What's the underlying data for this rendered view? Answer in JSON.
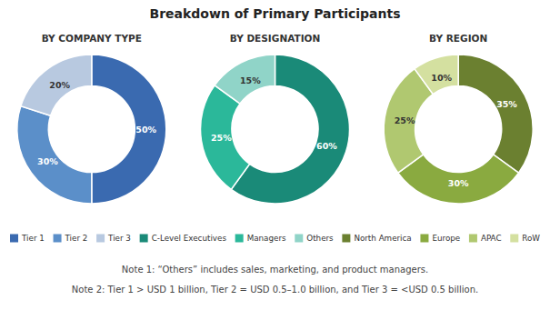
{
  "title": "Breakdown of Primary Participants",
  "annotations": [
    "Note 1: “Others” includes sales, marketing, and product managers.",
    "Note 2: Tier 1 > USD 1 billion, Tier 2 = USD 0.5–1.0 billion, and Tier 3 = <USD 0.5 billion."
  ],
  "chart_data": [
    {
      "type": "pie",
      "title": "BY COMPANY TYPE",
      "categories": [
        "Tier 1",
        "Tier 2",
        "Tier 3"
      ],
      "values": [
        50,
        30,
        20
      ],
      "value_labels": [
        "50%",
        "30%",
        "20%"
      ],
      "colors": [
        "#3a6ab0",
        "#5b8fc9",
        "#b8c9e0"
      ],
      "data_labels": true,
      "legend": "bottom"
    },
    {
      "type": "pie",
      "title": "BY DESIGNATION",
      "categories": [
        "C-Level Executives",
        "Managers",
        "Others"
      ],
      "values": [
        60,
        25,
        15
      ],
      "value_labels": [
        "60%",
        "25%",
        "15%"
      ],
      "colors": [
        "#1a8a78",
        "#2bb89a",
        "#90d4c8"
      ],
      "data_labels": true,
      "legend": "bottom"
    },
    {
      "type": "pie",
      "title": "BY REGION",
      "categories": [
        "North America",
        "Europe",
        "APAC",
        "RoW"
      ],
      "values": [
        35,
        30,
        25,
        10
      ],
      "value_labels": [
        "35%",
        "30%",
        "25%",
        "10%"
      ],
      "colors": [
        "#6b8030",
        "#8aaa40",
        "#b0c870",
        "#d4e0a0"
      ],
      "data_labels": true,
      "legend": "bottom"
    }
  ]
}
